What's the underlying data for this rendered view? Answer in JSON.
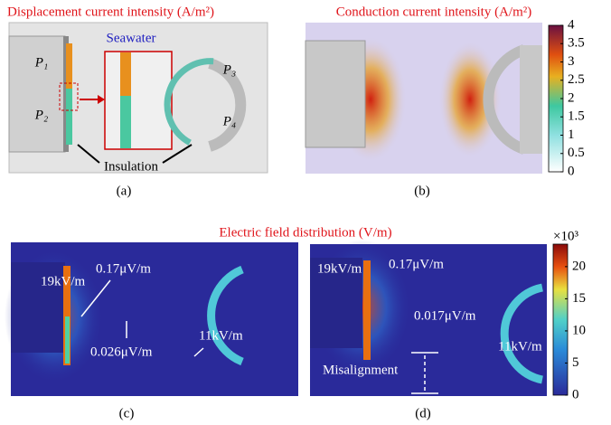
{
  "panel_a": {
    "title": "Displacement current intensity (A/m²)",
    "medium": "Seawater",
    "ports": [
      "P₁",
      "P₂",
      "P₃",
      "P₄"
    ],
    "annotation": "Insulation",
    "caption": "(a)"
  },
  "panel_b": {
    "title": "Conduction current intensity (A/m²)",
    "caption": "(b)",
    "colorbar": {
      "lim": [
        0,
        4
      ],
      "ticks": [
        0,
        0.5,
        1,
        1.5,
        2,
        2.5,
        3,
        3.5,
        4
      ]
    }
  },
  "figure_title": "Electric field distribution (V/m)",
  "panel_c": {
    "labels": [
      "19kV/m",
      "0.17μV/m",
      "0.026μV/m",
      "11kV/m"
    ],
    "caption": "(c)"
  },
  "panel_d": {
    "labels": [
      "19kV/m",
      "0.17μV/m",
      "0.017μV/m",
      "11kV/m",
      "Misalignment"
    ],
    "caption": "(d)",
    "colorbar": {
      "lim": [
        0,
        23.5
      ],
      "ticks": [
        0,
        5,
        10,
        15,
        20
      ],
      "multiplier": "×10³"
    }
  }
}
